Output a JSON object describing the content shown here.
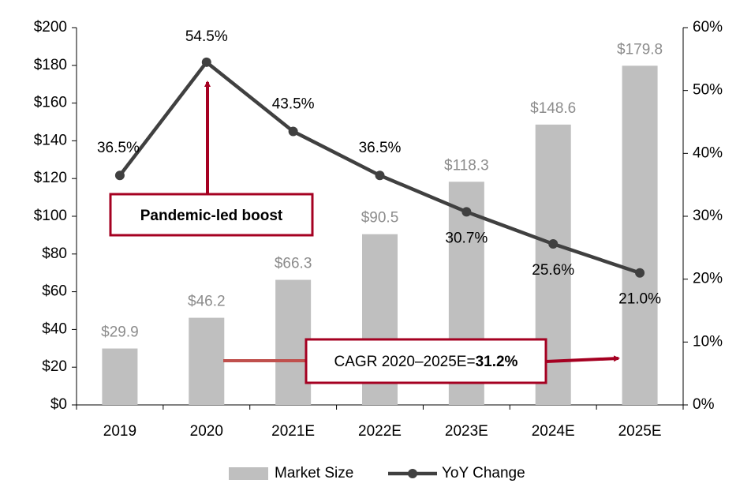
{
  "chart_data": {
    "type": "bar-line",
    "categories": [
      "2019",
      "2020",
      "2021E",
      "2022E",
      "2023E",
      "2024E",
      "2025E"
    ],
    "series": [
      {
        "name": "Market Size",
        "type": "bar",
        "color": "#bfbfbf",
        "values": [
          29.9,
          46.2,
          66.3,
          90.5,
          118.3,
          148.6,
          179.8
        ],
        "value_labels": [
          "$29.9",
          "$46.2",
          "$66.3",
          "$90.5",
          "$118.3",
          "$148.6",
          "$179.8"
        ]
      },
      {
        "name": "YoY Change",
        "type": "line",
        "axis": "y2",
        "color": "#404040",
        "values": [
          36.5,
          54.5,
          43.5,
          36.5,
          30.7,
          25.6,
          21.0
        ],
        "value_labels": [
          "36.5%",
          "54.5%",
          "43.5%",
          "36.5%",
          "30.7%",
          "25.6%",
          "21.0%"
        ]
      }
    ],
    "ylim": [
      0,
      200
    ],
    "yticks": [
      {
        "value": 0,
        "label": "$0"
      },
      {
        "value": 20,
        "label": "$20"
      },
      {
        "value": 40,
        "label": "$40"
      },
      {
        "value": 60,
        "label": "$60"
      },
      {
        "value": 80,
        "label": "$80"
      },
      {
        "value": 100,
        "label": "$100"
      },
      {
        "value": 120,
        "label": "$120"
      },
      {
        "value": 140,
        "label": "$140"
      },
      {
        "value": 160,
        "label": "$160"
      },
      {
        "value": 180,
        "label": "$180"
      },
      {
        "value": 200,
        "label": "$200"
      }
    ],
    "y2lim": [
      0,
      60
    ],
    "y2ticks": [
      {
        "value": 0,
        "label": "0%"
      },
      {
        "value": 10,
        "label": "10%"
      },
      {
        "value": 20,
        "label": "20%"
      },
      {
        "value": 30,
        "label": "30%"
      },
      {
        "value": 40,
        "label": "40%"
      },
      {
        "value": 50,
        "label": "50%"
      },
      {
        "value": 60,
        "label": "60%"
      }
    ],
    "annotations": [
      {
        "text": "Pandemic-led boost"
      },
      {
        "text": "CAGR 2020–2025E=",
        "emphasis": "31.2%"
      }
    ],
    "legend": "bottom"
  }
}
